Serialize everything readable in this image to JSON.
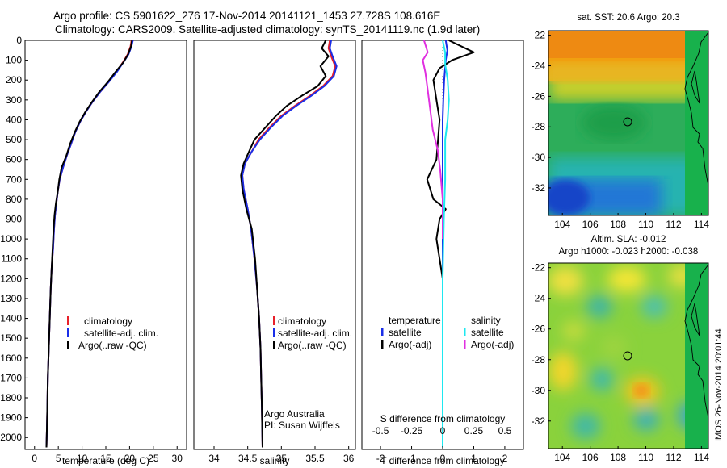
{
  "header": {
    "line1": "Argo profile: CS 5901622_276 17-Nov-2014 20141121_1453 27.728S 108.616E",
    "line2": "Climatology: CARS2009. Satellite-adjusted climatology: synTS_20141119.nc (1.9d later)"
  },
  "colors": {
    "climatology": "#e8202a",
    "satellite": "#1a2ee8",
    "argo": "#000000",
    "sal_satellite": "#1ee8f0",
    "sal_argo": "#e030e0"
  },
  "chart_data": [
    {
      "type": "line",
      "name": "temperature-profile",
      "xlabel": "temperature (deg C)",
      "ylabel": "",
      "xlim": [
        -2,
        32
      ],
      "ylim": [
        2060,
        0
      ],
      "xticks": [
        0,
        5,
        10,
        15,
        20,
        25,
        30
      ],
      "yticks": [
        0,
        100,
        200,
        300,
        400,
        500,
        600,
        700,
        800,
        900,
        1000,
        1100,
        1200,
        1300,
        1400,
        1500,
        1600,
        1700,
        1800,
        1900,
        2000
      ],
      "legend": {
        "position": "lower-middle",
        "entries": [
          "climatology",
          "satellite-adj. clim.",
          "Argo(..raw -QC)"
        ]
      },
      "series": [
        {
          "name": "climatology",
          "x": [
            20.4,
            20.2,
            19.6,
            18.6,
            17.2,
            15.6,
            13.8,
            12.2,
            10.8,
            9.6,
            8.6,
            7.7,
            6.8,
            6.0,
            5.3,
            4.9,
            4.6,
            4.3,
            4.1,
            3.9,
            3.6,
            3.4,
            3.2,
            3.0,
            2.8,
            2.7,
            2.6,
            2.5
          ],
          "y": [
            0,
            30,
            70,
            110,
            160,
            210,
            260,
            310,
            360,
            410,
            460,
            520,
            580,
            640,
            700,
            760,
            820,
            880,
            950,
            1050,
            1150,
            1250,
            1400,
            1550,
            1700,
            1850,
            1950,
            2050
          ]
        },
        {
          "name": "satellite-adj. clim.",
          "x": [
            20.7,
            20.4,
            19.8,
            18.7,
            17.3,
            15.6,
            13.8,
            12.2,
            10.8,
            9.6,
            8.6,
            7.7,
            6.8,
            6.0,
            5.3,
            4.9,
            4.6,
            4.3,
            4.1,
            3.9,
            3.6,
            3.4,
            3.2,
            3.0,
            2.8,
            2.7,
            2.6,
            2.5
          ],
          "y": [
            0,
            30,
            70,
            110,
            160,
            210,
            260,
            310,
            360,
            410,
            460,
            520,
            580,
            640,
            700,
            760,
            820,
            880,
            950,
            1050,
            1150,
            1250,
            1400,
            1550,
            1700,
            1850,
            1950,
            2050
          ]
        },
        {
          "name": "Argo(..raw -QC)",
          "x": [
            20.5,
            20.3,
            19.7,
            18.7,
            17.0,
            15.4,
            13.6,
            12.1,
            10.7,
            9.5,
            8.5,
            7.5,
            6.7,
            5.7,
            5.2,
            4.9,
            4.5,
            4.2,
            4.0,
            3.8,
            3.6,
            3.4,
            3.2,
            3.0,
            2.8,
            2.7,
            2.6,
            2.5
          ],
          "y": [
            0,
            30,
            70,
            110,
            160,
            210,
            260,
            310,
            360,
            410,
            460,
            520,
            580,
            640,
            700,
            760,
            820,
            880,
            950,
            1050,
            1150,
            1250,
            1400,
            1550,
            1700,
            1850,
            1950,
            2050
          ]
        }
      ]
    },
    {
      "type": "line",
      "name": "salinity-profile",
      "xlabel": "salinity",
      "ylabel": "",
      "xlim": [
        33.7,
        36.1
      ],
      "ylim": [
        2060,
        0
      ],
      "xticks": [
        34,
        34.5,
        35,
        35.5,
        36
      ],
      "xtick_labels": [
        "34",
        "34.5",
        "35",
        "35.5",
        "36"
      ],
      "legend": {
        "position": "lower-middle",
        "entries": [
          "climatology",
          "satellite-adj. clim.",
          "Argo(..raw -QC)"
        ]
      },
      "annotations": [
        "Argo Australia",
        "PI: Susan Wijffels"
      ],
      "series": [
        {
          "name": "climatology",
          "x": [
            35.72,
            35.7,
            35.74,
            35.8,
            35.76,
            35.62,
            35.42,
            35.2,
            35.0,
            34.82,
            34.66,
            34.56,
            34.46,
            34.42,
            34.44,
            34.5,
            34.55,
            34.6,
            34.64,
            34.67,
            34.69,
            34.7,
            34.71,
            34.72
          ],
          "y": [
            0,
            40,
            80,
            130,
            180,
            230,
            280,
            330,
            380,
            440,
            500,
            560,
            620,
            680,
            750,
            850,
            950,
            1100,
            1250,
            1400,
            1550,
            1700,
            1850,
            2050
          ]
        },
        {
          "name": "satellite-adj. clim.",
          "x": [
            35.74,
            35.72,
            35.76,
            35.82,
            35.78,
            35.64,
            35.44,
            35.22,
            35.02,
            34.84,
            34.68,
            34.56,
            34.46,
            34.42,
            34.44,
            34.5,
            34.55,
            34.6,
            34.64,
            34.67,
            34.69,
            34.7,
            34.71,
            34.72
          ],
          "y": [
            0,
            40,
            80,
            130,
            180,
            230,
            280,
            330,
            380,
            440,
            500,
            560,
            620,
            680,
            750,
            850,
            950,
            1100,
            1250,
            1400,
            1550,
            1700,
            1850,
            2050
          ]
        },
        {
          "name": "Argo(..raw -QC)",
          "x": [
            35.66,
            35.6,
            35.7,
            35.58,
            35.66,
            35.54,
            35.3,
            35.08,
            34.92,
            34.76,
            34.6,
            34.52,
            34.44,
            34.4,
            34.42,
            34.48,
            34.56,
            34.61,
            34.64,
            34.67,
            34.69,
            34.7,
            34.71,
            34.72
          ],
          "y": [
            0,
            40,
            80,
            130,
            180,
            230,
            280,
            330,
            380,
            440,
            500,
            560,
            620,
            680,
            750,
            850,
            950,
            1100,
            1250,
            1400,
            1550,
            1700,
            1850,
            2050
          ]
        }
      ]
    },
    {
      "type": "line",
      "name": "difference-profile",
      "xlabel": "T difference from climatology",
      "x2label": "S difference from climatology",
      "xlim": [
        -2.6,
        2.6
      ],
      "ylim": [
        2060,
        0
      ],
      "xticks": [
        -2,
        -1,
        0,
        1,
        2
      ],
      "x2ticks": [
        -0.5,
        -0.25,
        0,
        0.25,
        0.5
      ],
      "x2lim": [
        -0.65,
        0.65
      ],
      "legend": {
        "position": "lower-middle",
        "headers": [
          "temperature",
          "salinity"
        ],
        "entries": [
          "satellite",
          "Argo(-adj)",
          "satellite",
          "Argo(-adj)"
        ]
      },
      "series": [
        {
          "name": "temperature satellite",
          "x": [
            0.1,
            0.15,
            0.1,
            0.05,
            0.02,
            0.0,
            0.0,
            0.0,
            0.0,
            0.0,
            0.0,
            0.0,
            0.0,
            0.0
          ],
          "y": [
            0,
            50,
            100,
            200,
            300,
            400,
            500,
            700,
            900,
            1100,
            1300,
            1500,
            1800,
            2050
          ]
        },
        {
          "name": "temperature Argo(-adj)",
          "x": [
            0.2,
            1.0,
            0.3,
            -0.1,
            -0.3,
            -0.2,
            -0.1,
            -0.2,
            -0.5,
            -0.3,
            0.1,
            -0.1,
            -0.2,
            0.0,
            0.0,
            0.0,
            0.0
          ],
          "y": [
            0,
            60,
            100,
            140,
            200,
            300,
            400,
            600,
            700,
            800,
            850,
            900,
            1000,
            1200,
            1500,
            1800,
            2050
          ]
        },
        {
          "name": "salinity satellite",
          "x": [
            0.0,
            0.02,
            0.02,
            0.04,
            0.05,
            0.04,
            0.02,
            0.02,
            0.01,
            0.0,
            0.0,
            0.0
          ],
          "y": [
            0,
            60,
            120,
            200,
            300,
            400,
            500,
            700,
            900,
            1200,
            1600,
            2050
          ]
        },
        {
          "name": "salinity Argo(-adj)",
          "x": [
            -0.15,
            -0.12,
            -0.16,
            -0.14,
            -0.12,
            -0.1,
            -0.08,
            -0.04,
            -0.02,
            0.0,
            0.0
          ],
          "y": [
            0,
            60,
            100,
            160,
            250,
            350,
            450,
            550,
            650,
            800,
            1000
          ]
        }
      ]
    },
    {
      "type": "heatmap",
      "name": "sst-map",
      "title": "sat. SST: 20.6  Argo: 20.3",
      "xlim": [
        103,
        114.5
      ],
      "ylim": [
        -33.8,
        -21.7
      ],
      "xticks": [
        104,
        106,
        108,
        110,
        112,
        114
      ],
      "yticks": [
        -22,
        -24,
        -26,
        -28,
        -30,
        -32
      ],
      "marker": {
        "lon": 108.616,
        "lat": -27.728
      }
    },
    {
      "type": "heatmap",
      "name": "sla-map",
      "title": "Altim. SLA: -0.012",
      "subtitle": "Argo h1000: -0.023 h2000: -0.038",
      "xlim": [
        103,
        114.5
      ],
      "ylim": [
        -33.8,
        -21.7
      ],
      "xticks": [
        104,
        106,
        108,
        110,
        112,
        114
      ],
      "yticks": [
        -22,
        -24,
        -26,
        -28,
        -30,
        -32
      ],
      "marker": {
        "lon": 108.616,
        "lat": -27.728
      }
    }
  ],
  "credit": "IMOS 26-Nov-2014 20:01:44"
}
